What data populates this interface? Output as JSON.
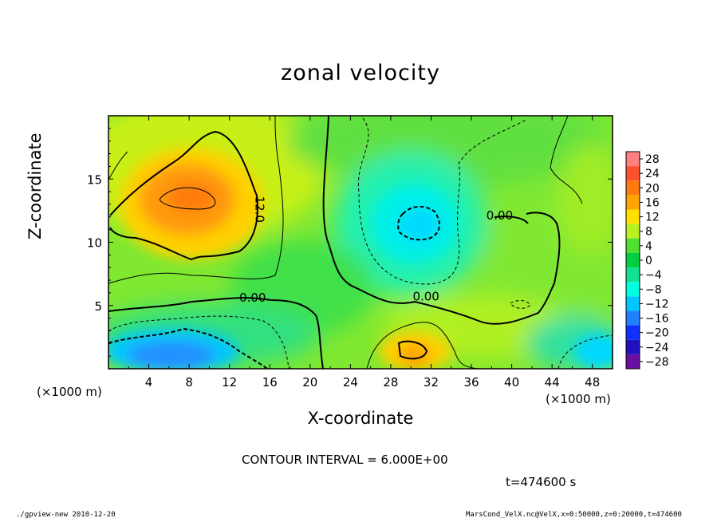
{
  "chart_data": {
    "type": "heatmap",
    "title": "zonal velocity",
    "xlabel": "X-coordinate",
    "ylabel": "Z-coordinate",
    "x_unit_label": "(×1000 m)",
    "y_unit_label": "(×1000 m)",
    "x_ticks": [
      "4",
      "8",
      "12",
      "16",
      "20",
      "24",
      "28",
      "32",
      "36",
      "40",
      "44",
      "48"
    ],
    "x_tick_values": [
      4,
      8,
      12,
      16,
      20,
      24,
      28,
      32,
      36,
      40,
      44,
      48
    ],
    "y_ticks": [
      "5",
      "10",
      "15"
    ],
    "y_tick_values": [
      5,
      10,
      15
    ],
    "xlim": [
      0,
      50
    ],
    "ylim": [
      0,
      20
    ],
    "colorbar": {
      "levels": [
        "28",
        "24",
        "20",
        "16",
        "12",
        "8",
        "4",
        "0",
        "−4",
        "−8",
        "−12",
        "−16",
        "−20",
        "−24",
        "−28"
      ],
      "level_values": [
        28,
        24,
        20,
        16,
        12,
        8,
        4,
        0,
        -4,
        -8,
        -12,
        -16,
        -20,
        -24,
        -28
      ],
      "colors": [
        "#ff8080",
        "#ff5030",
        "#ff7a10",
        "#ffa500",
        "#ffe000",
        "#b8f020",
        "#50e030",
        "#00d040",
        "#10e090",
        "#00ffe0",
        "#00c8ff",
        "#2080ff",
        "#1030ff",
        "#2010c0",
        "#6a10a0"
      ]
    },
    "contour_labels": [
      "12.0",
      "0.00",
      "0.00",
      "0.00"
    ],
    "features": [
      {
        "type": "max",
        "x": 9,
        "z": 13.5,
        "value": 19
      },
      {
        "type": "min",
        "x": 31,
        "z": 11,
        "value": -8
      },
      {
        "type": "min",
        "x": 8,
        "z": 1.5,
        "value": -14
      },
      {
        "type": "max",
        "x": 31,
        "z": 1.5,
        "value": 17
      },
      {
        "type": "min",
        "x": 49,
        "z": 1.5,
        "value": -10
      }
    ]
  },
  "contour_interval": "CONTOUR INTERVAL = 6.000E+00",
  "time_label": "t=474600 s",
  "footer_left": "./gpview-new  2010-12-20",
  "footer_right": "MarsCond_VelX.nc@VelX,x=0:50000,z=0:20000,t=474600"
}
